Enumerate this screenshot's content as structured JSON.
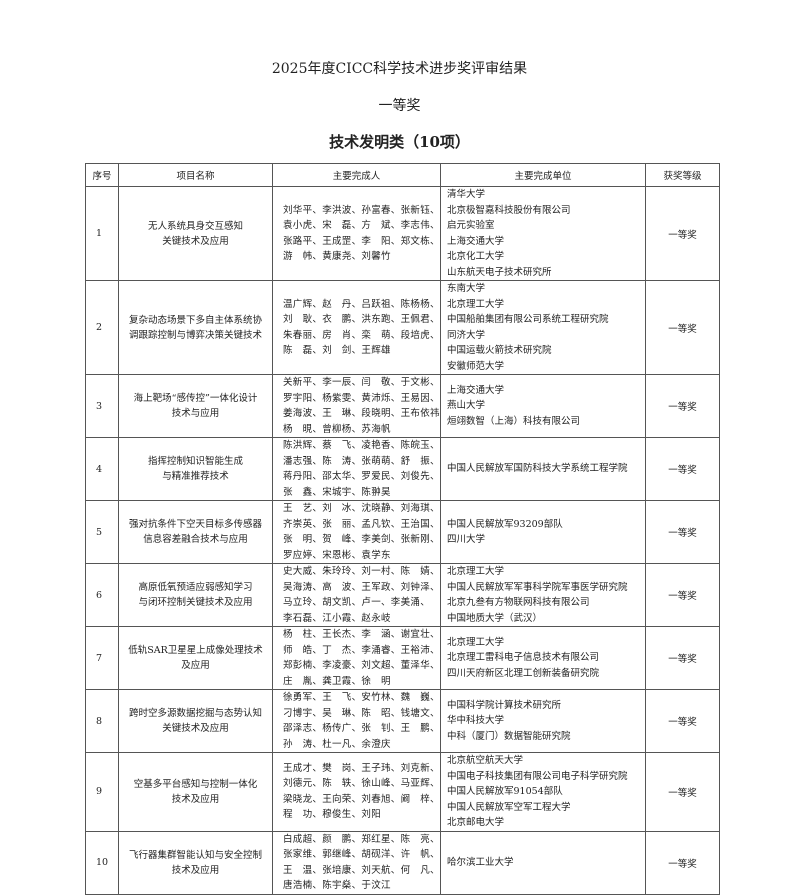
{
  "title": "2025年度CICC科学技术进步奖评审结果",
  "award": "一等奖",
  "category": "技术发明类（10项）",
  "headers": [
    "序号",
    "项目名称",
    "主要完成人",
    "主要完成单位",
    "获奖等级"
  ],
  "rows": [
    {
      "no": "1",
      "name": [
        "无人系统具身交互感知",
        "关键技术及应用"
      ],
      "people": [
        "刘华平、李洪波、孙富春、张新钰、",
        "袁小虎、宋　磊、方　斌、李志伟、",
        "张路平、王成罡、李　阳、郑文栋、",
        "游　帏、黄康尧、刘馨竹"
      ],
      "units": [
        "清华大学",
        "北京极智嘉科技股份有限公司",
        "启元实验室",
        "上海交通大学",
        "北京化工大学",
        "山东航天电子技术研究所"
      ],
      "level": "一等奖"
    },
    {
      "no": "2",
      "name": [
        "复杂动态场景下多自主体系统协",
        "调跟踪控制与博弈决策关键技术"
      ],
      "people": [
        "温广辉、赵　丹、吕跃祖、陈杨杨、",
        "刘　耿、衣　鹏、洪东跑、王佩君、",
        "朱春丽、房　肖、栾　萌、段培虎、",
        "陈　磊、刘　剑、王辉雄"
      ],
      "units": [
        "东南大学",
        "北京理工大学",
        "中国船舶集团有限公司系统工程研究院",
        "同济大学",
        "中国运载火箭技术研究院",
        "安徽师范大学"
      ],
      "level": "一等奖"
    },
    {
      "no": "3",
      "name": [
        "海上靶场“感传控”一体化设计",
        "技术与应用"
      ],
      "people": [
        "关新平、李一辰、闫　敬、于文彬、",
        "罗宇阳、杨紫雯、黄沛烁、王易因、",
        "姜海波、王　琳、段晓明、王布依祎",
        "杨　晛、曾柳杨、苏海帆"
      ],
      "units": [
        "上海交通大学",
        "燕山大学",
        "烜翊数智（上海）科技有限公司"
      ],
      "level": "一等奖"
    },
    {
      "no": "4",
      "name": [
        "指挥控制知识智能生成",
        "与精准推荐技术"
      ],
      "people": [
        "陈洪辉、蔡　飞、凌艳香、陈皖玉、",
        "潘志强、陈　涛、张萌萌、舒　振、",
        "蒋丹阳、邵太华、罗爱民、刘俊先、",
        "张　鑫、宋城宇、陈翀昊"
      ],
      "units": [
        "中国人民解放军国防科技大学系统工程学院"
      ],
      "level": "一等奖"
    },
    {
      "no": "5",
      "name": [
        "强对抗条件下空天目标多传感器",
        "信息容差融合技术与应用"
      ],
      "people": [
        "王　艺、刘　冰、沈晓静、刘海琪、",
        "齐崇英、张　丽、孟凡钦、王治国、",
        "张　明、贺　峰、李美剑、张新刚、",
        "罗应婷、宋恩彬、袁学东"
      ],
      "units": [
        "中国人民解放军93209部队",
        "四川大学"
      ],
      "level": "一等奖"
    },
    {
      "no": "6",
      "name": [
        "高原低氧预适应弱感知学习",
        "与闭环控制关键技术及应用"
      ],
      "people": [
        "史大威、朱玲玲、刘一村、陈　婧、",
        "吴海涛、高　波、王军政、刘钟泽、",
        "马立玲、胡文凯、卢一、李美涌、",
        "李石磊、江小霞、赵永岐"
      ],
      "units": [
        "北京理工大学",
        "中国人民解放军军事科学院军事医学研究院",
        "北京九叁有方物联网科技有限公司",
        "中国地质大学（武汉）"
      ],
      "level": "一等奖"
    },
    {
      "no": "7",
      "name": [
        "低轨SAR卫星星上成像处理技术",
        "及应用"
      ],
      "people": [
        "杨　柱、王长杰、李　涵、谢宜壮、",
        "师　皓、丁　杰、李涌睿、王裕沛、",
        "郑彭楠、李凌豪、刘文超、董泽华、",
        "庄　胤、龚卫霞、徐　明"
      ],
      "units": [
        "北京理工大学",
        "北京理工雷科电子信息技术有限公司",
        "四川天府新区北理工创新装备研究院"
      ],
      "level": "一等奖"
    },
    {
      "no": "8",
      "name": [
        "跨时空多源数据挖掘与态势认知",
        "关键技术及应用"
      ],
      "people": [
        "徐勇军、王　飞、安竹林、魏　巍、",
        "刁博宇、吴　琳、陈　昭、钱塘文、",
        "邵泽志、杨传广、张　钊、王　鹏、",
        "孙　涛、杜一凡、余澄庆"
      ],
      "units": [
        "中国科学院计算技术研究所",
        "华中科技大学",
        "中科（厦门）数据智能研究院"
      ],
      "level": "一等奖"
    },
    {
      "no": "9",
      "name": [
        "空基多平台感知与控制一体化",
        "技术及应用"
      ],
      "people": [
        "王成才、樊　岗、王子玮、刘克新、",
        "刘德元、陈　轶、徐山峰、马亚辉、",
        "梁晓龙、王向荣、刘春旭、阚　梓、",
        "程　功、穆俊生、刘阳"
      ],
      "units": [
        "北京航空航天大学",
        "中国电子科技集团有限公司电子科学研究院",
        "中国人民解放军91054部队",
        "中国人民解放军空军工程大学",
        "北京邮电大学"
      ],
      "level": "一等奖"
    },
    {
      "no": "10",
      "name": [
        "飞行器集群智能认知与安全控制",
        "技术及应用"
      ],
      "people": [
        "白成超、颜　鹏、郑红星、陈　亮、",
        "张家维、郭继峰、胡砚洋、许　帆、",
        "王　温、张培康、刘天航、何　凡、",
        "唐浩楠、陈宇燊、于汶江"
      ],
      "units": [
        "哈尔滨工业大学"
      ],
      "level": "一等奖"
    }
  ]
}
